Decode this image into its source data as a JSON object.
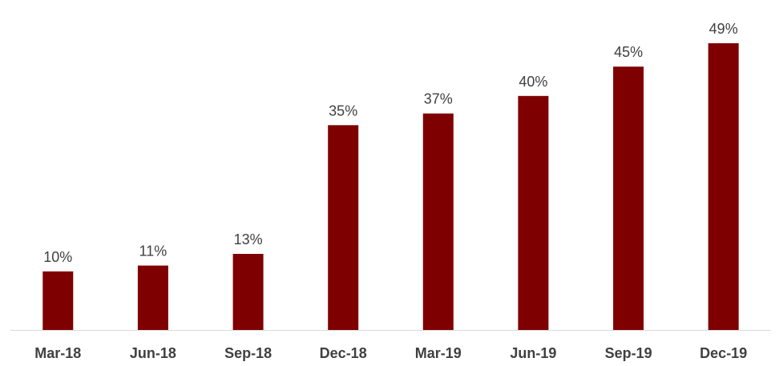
{
  "chart_data": {
    "type": "bar",
    "categories": [
      "Mar-18",
      "Jun-18",
      "Sep-18",
      "Dec-18",
      "Mar-19",
      "Jun-19",
      "Sep-19",
      "Dec-19"
    ],
    "values": [
      10,
      11,
      13,
      35,
      37,
      40,
      45,
      49
    ],
    "data_labels": [
      "10%",
      "11%",
      "13%",
      "35%",
      "37%",
      "40%",
      "45%",
      "49%"
    ],
    "title": "",
    "xlabel": "",
    "ylabel": "",
    "ylim": [
      0,
      49
    ],
    "grid": false,
    "legend": "none",
    "bar_color": "#7F0000",
    "axis_color": "#D9D9D9"
  }
}
